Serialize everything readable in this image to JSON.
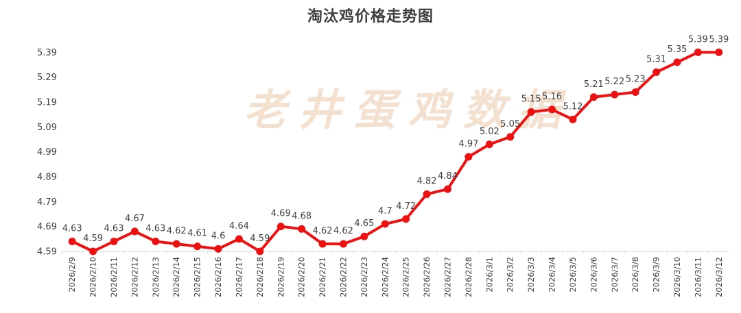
{
  "chart_data": {
    "type": "line",
    "title": "淘汰鸡价格走势图",
    "watermark": "老井蛋鸡数据",
    "xlabel": "",
    "ylabel": "",
    "ylim": [
      4.59,
      5.44
    ],
    "yticks": [
      "4.59",
      "4.69",
      "4.79",
      "4.89",
      "4.99",
      "5.09",
      "5.19",
      "5.29",
      "5.39"
    ],
    "grid": false,
    "legend": "none",
    "line_color": "#ee1111",
    "categories": [
      "2026/2/9",
      "2026/2/10",
      "2026/2/11",
      "2026/2/12",
      "2026/2/13",
      "2026/2/14",
      "2026/2/15",
      "2026/2/16",
      "2026/2/17",
      "2026/2/18",
      "2026/2/19",
      "2026/2/20",
      "2026/2/21",
      "2026/2/22",
      "2026/2/23",
      "2026/2/24",
      "2026/2/25",
      "2026/2/26",
      "2026/2/27",
      "2026/2/28",
      "2026/3/1",
      "2026/3/2",
      "2026/3/3",
      "2026/3/4",
      "2026/3/5",
      "2026/3/6",
      "2026/3/7",
      "2026/3/8",
      "2026/3/9",
      "2026/3/10",
      "2026/3/11",
      "2026/3/12"
    ],
    "values": [
      4.63,
      4.59,
      4.63,
      4.67,
      4.63,
      4.62,
      4.61,
      4.6,
      4.64,
      4.59,
      4.69,
      4.68,
      4.62,
      4.62,
      4.65,
      4.7,
      4.72,
      4.82,
      4.84,
      4.97,
      5.02,
      5.05,
      5.15,
      5.16,
      5.12,
      5.21,
      5.22,
      5.23,
      5.31,
      5.35,
      5.39,
      5.39
    ],
    "value_labels": [
      "4.63",
      "4.59",
      "4.63",
      "4.67",
      "4.63",
      "4.62",
      "4.61",
      "4.6",
      "4.64",
      "4.59",
      "4.69",
      "4.68",
      "4.62",
      "4.62",
      "4.65",
      "4.7",
      "4.72",
      "4.82",
      "4.84",
      "4.97",
      "5.02",
      "5.05",
      "5.15",
      "5.16",
      "5.12",
      "5.21",
      "5.22",
      "5.23",
      "5.31",
      "5.35",
      "5.39",
      "5.39"
    ]
  }
}
